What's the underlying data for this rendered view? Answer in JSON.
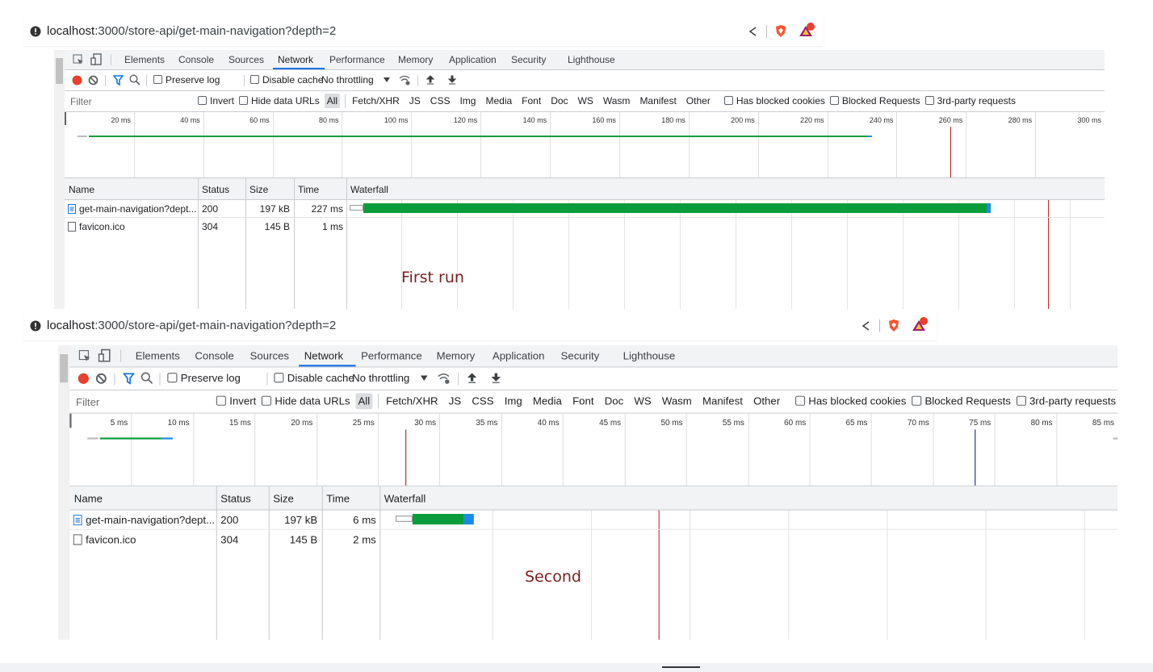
{
  "panels": [
    {
      "url": {
        "host": "localhost",
        "path": ":3000/store-api/get-main-navigation?depth=2"
      },
      "tabs": [
        "Elements",
        "Console",
        "Sources",
        "Network",
        "Performance",
        "Memory",
        "Application",
        "Security",
        "Lighthouse"
      ],
      "toolbar": {
        "preserve_log": "Preserve log",
        "disable_cache": "Disable cache",
        "throttling": "No throttling"
      },
      "filter": {
        "placeholder": "Filter",
        "options": [
          "Invert",
          "Hide data URLs"
        ],
        "types": [
          "All",
          "Fetch/XHR",
          "JS",
          "CSS",
          "Img",
          "Media",
          "Font",
          "Doc",
          "WS",
          "Wasm",
          "Manifest",
          "Other"
        ],
        "checks": [
          "Has blocked cookies",
          "Blocked Requests",
          "3rd-party requests"
        ]
      },
      "overview_ticks": [
        "20 ms",
        "40 ms",
        "60 ms",
        "80 ms",
        "100 ms",
        "120 ms",
        "140 ms",
        "160 ms",
        "180 ms",
        "200 ms",
        "220 ms",
        "240 ms",
        "260 ms",
        "280 ms",
        "300 ms"
      ],
      "columns": [
        "Name",
        "Status",
        "Size",
        "Time",
        "Waterfall"
      ],
      "rows": [
        [
          "get-main-navigation?dept...",
          "200",
          "197 kB",
          "227 ms"
        ],
        [
          "favicon.ico",
          "304",
          "145 B",
          "1 ms"
        ]
      ],
      "annotation": "First run"
    },
    {
      "url": {
        "host": "localhost",
        "path": ":3000/store-api/get-main-navigation?depth=2"
      },
      "tabs": [
        "Elements",
        "Console",
        "Sources",
        "Network",
        "Performance",
        "Memory",
        "Application",
        "Security",
        "Lighthouse"
      ],
      "toolbar": {
        "preserve_log": "Preserve log",
        "disable_cache": "Disable cache",
        "throttling": "No throttling"
      },
      "filter": {
        "placeholder": "Filter",
        "options": [
          "Invert",
          "Hide data URLs"
        ],
        "types": [
          "All",
          "Fetch/XHR",
          "JS",
          "CSS",
          "Img",
          "Media",
          "Font",
          "Doc",
          "WS",
          "Wasm",
          "Manifest",
          "Other"
        ],
        "checks": [
          "Has blocked cookies",
          "Blocked Requests",
          "3rd-party requests"
        ]
      },
      "overview_ticks": [
        "5 ms",
        "10 ms",
        "15 ms",
        "20 ms",
        "25 ms",
        "30 ms",
        "35 ms",
        "40 ms",
        "45 ms",
        "50 ms",
        "55 ms",
        "60 ms",
        "65 ms",
        "70 ms",
        "75 ms",
        "80 ms",
        "85 ms"
      ],
      "columns": [
        "Name",
        "Status",
        "Size",
        "Time",
        "Waterfall"
      ],
      "rows": [
        [
          "get-main-navigation?dept...",
          "200",
          "197 kB",
          "6 ms"
        ],
        [
          "favicon.ico",
          "304",
          "145 B",
          "2 ms"
        ]
      ],
      "annotation": "Second"
    }
  ]
}
